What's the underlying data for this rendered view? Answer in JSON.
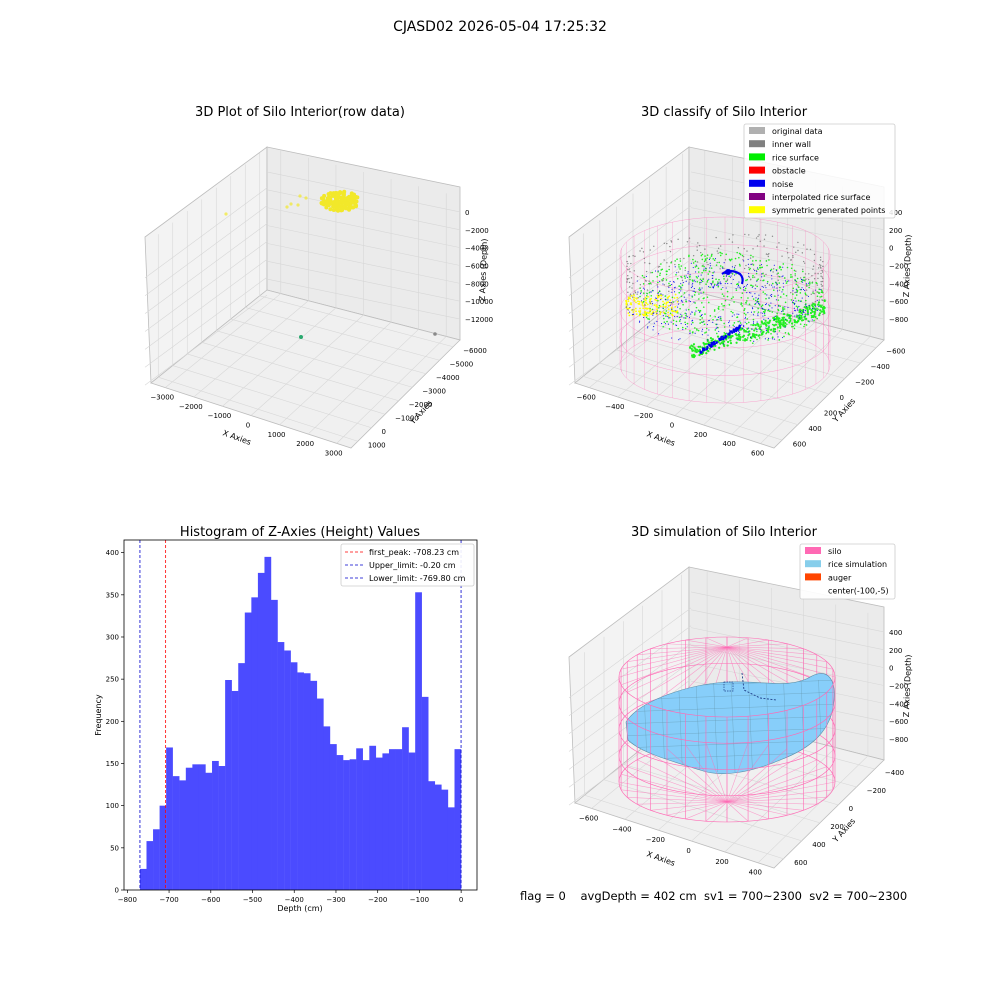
{
  "suptitle": "CJASD02 2026-05-04 17:25:32",
  "status_line": "flag = 0    avgDepth = 402 cm  sv1 = 700~2300  sv2 = 700~2300",
  "colors": {
    "raw_points": "#f2e82a",
    "raw_far_point": "#2aa86e",
    "raw_gray_point": "#8a8a8a",
    "hist_bar": "#4b4bff",
    "peak_line": "#ff0000",
    "limit_line": "#0000cc",
    "silo_wire": "#ff69b4",
    "rice_surface": "#87cefa",
    "noise": "#0000ee",
    "surface": "#22ee22",
    "inner_wall": "#888888",
    "generated": "#ffff00"
  },
  "chart_data": [
    {
      "type": "scatter",
      "title": "3D Plot of Silo Interior(row data)",
      "xlabel": "X Axies",
      "ylabel": "Y Axies",
      "zlabel": "Z Axies (Depth)",
      "x_ticks": [
        "−3000",
        "−2000",
        "−1000",
        "0",
        "1000",
        "2000",
        "3000"
      ],
      "y_ticks": [
        "1000",
        "0",
        "−1000",
        "−2000",
        "−3000",
        "−4000",
        "−5000",
        "−6000"
      ],
      "z_ticks": [
        "0",
        "−2000",
        "−4000",
        "−6000",
        "−8000",
        "−10000",
        "−12000"
      ]
    },
    {
      "type": "scatter",
      "title": "3D classify of Silo Interior",
      "xlabel": "X Axies",
      "ylabel": "Y Axies",
      "zlabel": "Z Axies (Depth)",
      "x_ticks": [
        "−600",
        "−400",
        "−200",
        "0",
        "200",
        "400",
        "600"
      ],
      "y_ticks": [
        "600",
        "400",
        "200",
        "0",
        "−200",
        "−400",
        "−600"
      ],
      "z_ticks": [
        "400",
        "200",
        "0",
        "−200",
        "−400",
        "−600",
        "−800"
      ],
      "legend": [
        {
          "label": "original data",
          "color": "#b0b0b0"
        },
        {
          "label": "inner wall",
          "color": "#808080"
        },
        {
          "label": "rice surface",
          "color": "#00ee00"
        },
        {
          "label": "obstacle",
          "color": "#ff0000"
        },
        {
          "label": "noise",
          "color": "#0000ee"
        },
        {
          "label": "interpolated rice surface",
          "color": "#800080"
        },
        {
          "label": "symmetric generated points",
          "color": "#ffff00"
        }
      ]
    },
    {
      "type": "bar",
      "title": "Histogram of Z-Axies (Height) Values",
      "xlabel": "Depth (cm)",
      "ylabel": "Frequency",
      "xlim": [
        -808,
        38
      ],
      "ylim": [
        0,
        415
      ],
      "x_ticks": [
        -800,
        -700,
        -600,
        -500,
        -400,
        -300,
        -200,
        -100,
        0
      ],
      "y_ticks": [
        0,
        50,
        100,
        150,
        200,
        250,
        300,
        350,
        400
      ],
      "bins_start": -769.8,
      "bins_end": -0.2,
      "values": [
        25,
        58,
        72,
        100,
        169,
        135,
        130,
        145,
        149,
        149,
        139,
        153,
        147,
        249,
        236,
        269,
        329,
        347,
        376,
        395,
        344,
        294,
        284,
        270,
        258,
        257,
        248,
        227,
        194,
        173,
        160,
        154,
        155,
        168,
        154,
        171,
        157,
        162,
        167,
        167,
        193,
        163,
        353,
        229,
        129,
        125,
        119,
        98,
        167
      ],
      "vlines": [
        {
          "label": "first_peak: -708.23 cm",
          "x": -708.23,
          "color": "#ff0000"
        },
        {
          "label": "Upper_limit: -0.20 cm",
          "x": -0.2,
          "color": "#0000cc"
        },
        {
          "label": "Lower_limit: -769.80 cm",
          "x": -769.8,
          "color": "#0000cc"
        }
      ]
    },
    {
      "type": "surface",
      "title": "3D simulation of Silo Interior",
      "xlabel": "X Axies",
      "ylabel": "Y Axies",
      "zlabel": "Z Axies (Depth)",
      "x_ticks": [
        "−600",
        "−400",
        "−200",
        "0",
        "200",
        "400"
      ],
      "y_ticks": [
        "600",
        "400",
        "200",
        "0",
        "−200",
        "−400"
      ],
      "z_ticks": [
        "400",
        "200",
        "0",
        "−200",
        "−400",
        "−600",
        "−800"
      ],
      "legend": [
        {
          "label": "silo",
          "color": "#ff69b4"
        },
        {
          "label": "rice simulation",
          "color": "#87ceeb"
        },
        {
          "label": "auger",
          "color": "#ff4500"
        },
        {
          "label": "center(-100,-5)",
          "color": ""
        }
      ]
    }
  ]
}
